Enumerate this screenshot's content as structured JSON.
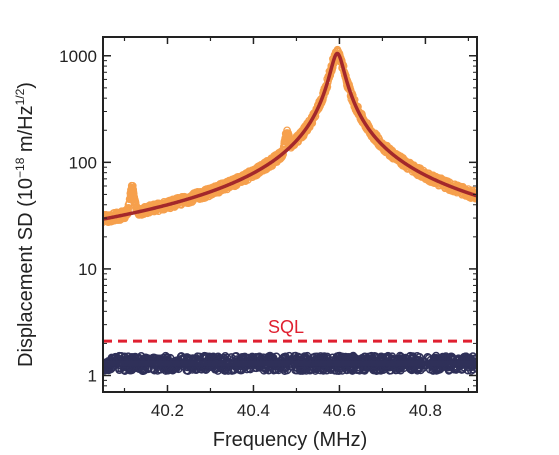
{
  "chart_data": {
    "type": "scatter",
    "title": "",
    "xlabel": "Frequency (MHz)",
    "ylabel_main": "Displacement SD (10",
    "ylabel_exp1": "−18",
    "ylabel_mid": " m/Hz",
    "ylabel_exp2": "1/2",
    "ylabel_end": ")",
    "xlim": [
      40.05,
      40.92
    ],
    "ylim": [
      0.7,
      1500
    ],
    "yscale": "log",
    "xticks": [
      {
        "value": 40.2,
        "label": "40.2"
      },
      {
        "value": 40.4,
        "label": "40.4"
      },
      {
        "value": 40.6,
        "label": "40.6"
      },
      {
        "value": 40.8,
        "label": "40.8"
      }
    ],
    "yticks": [
      {
        "value": 1,
        "label": "1"
      },
      {
        "value": 10,
        "label": "10"
      },
      {
        "value": 100,
        "label": "100"
      },
      {
        "value": 1000,
        "label": "1000"
      }
    ],
    "sql_level": 2.1,
    "sql_label": "SQL",
    "background_level": 1.3,
    "main_peak": {
      "center": 40.595,
      "peak": 1050,
      "floor": 1.45
    },
    "side_peaks": [
      {
        "center": 40.118,
        "peak": 25
      },
      {
        "center": 40.478,
        "peak": 58
      }
    ],
    "colors": {
      "data": "#f6a04d",
      "fit": "#a3282b",
      "sql": "#e02030",
      "background": "#2f3059",
      "axis": "#222222"
    },
    "series": [
      {
        "type": "scatter",
        "role": "measured displacement"
      },
      {
        "type": "line",
        "role": "fit"
      },
      {
        "type": "scatter",
        "role": "noise floor"
      },
      {
        "type": "dashed-line",
        "role": "SQL"
      }
    ]
  }
}
